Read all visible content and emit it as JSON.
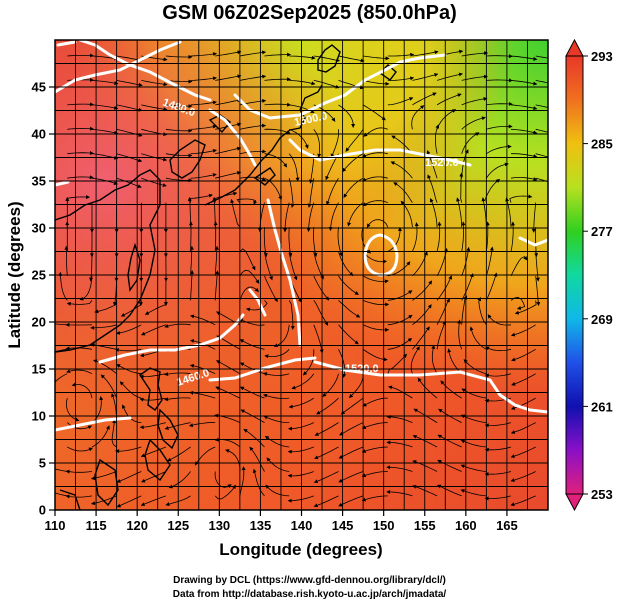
{
  "title": "GSM 06Z02Sep2025 (850.0hPa)",
  "map": {
    "xaxis": {
      "label": "Longitude (degrees)",
      "range": [
        110,
        170
      ],
      "ticks": [
        110,
        115,
        120,
        125,
        130,
        135,
        140,
        145,
        150,
        155,
        160,
        165
      ]
    },
    "yaxis": {
      "label": "Latitude  (degrees)",
      "range": [
        0,
        50
      ],
      "ticks": [
        0,
        5,
        10,
        15,
        20,
        25,
        30,
        35,
        40,
        45
      ]
    },
    "grid": true,
    "contours": [
      {
        "value": 1520.0,
        "label": "1520.0"
      },
      {
        "value": 1500.0,
        "label": "1500.0"
      },
      {
        "value": 1480.0,
        "label": "1480.0"
      },
      {
        "value": 1460.0,
        "label": "1460.0"
      }
    ],
    "low_center": {
      "lon": 149.5,
      "lat": 29.5
    }
  },
  "colorbar": {
    "range": [
      253,
      293
    ],
    "tick_labels": [
      "293",
      "285",
      "277",
      "269",
      "261",
      "253"
    ],
    "tick_values": [
      293,
      285,
      277,
      269,
      261,
      253
    ],
    "stops": [
      {
        "value": 253,
        "color": "#e0207a"
      },
      {
        "value": 257,
        "color": "#8a10c8"
      },
      {
        "value": 261,
        "color": "#1010b0"
      },
      {
        "value": 265,
        "color": "#2050e8"
      },
      {
        "value": 269,
        "color": "#10b8e8"
      },
      {
        "value": 273,
        "color": "#10d8a0"
      },
      {
        "value": 277,
        "color": "#30d020"
      },
      {
        "value": 281,
        "color": "#b8e020"
      },
      {
        "value": 285,
        "color": "#f0c010"
      },
      {
        "value": 289,
        "color": "#f07020"
      },
      {
        "value": 293,
        "color": "#e83828"
      }
    ]
  },
  "credits": {
    "line1": "Drawing by DCL (https://www.gfd-dennou.org/library/dcl/)",
    "line2": "Data from http://database.rish.kyoto-u.ac.jp/arch/jmadata/"
  }
}
